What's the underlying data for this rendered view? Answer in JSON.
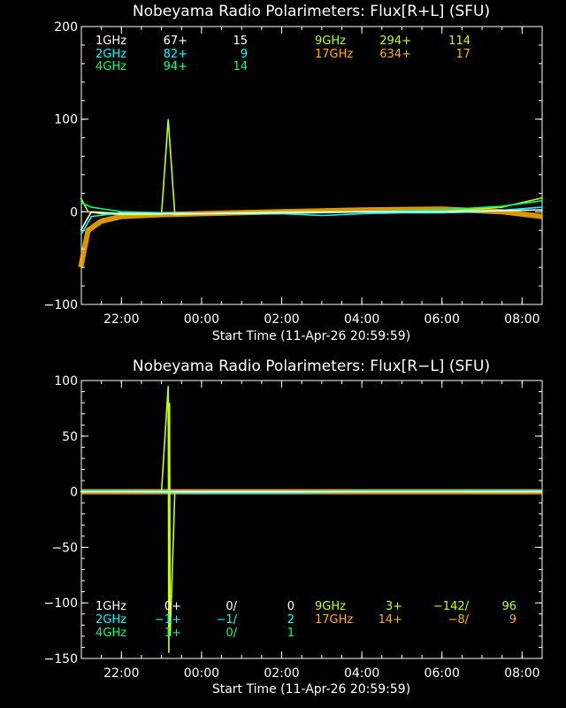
{
  "colors": {
    "background": "#000000",
    "axis": "#ffffff",
    "1GHz": "#ffffff",
    "2GHz": "#00ffff",
    "4GHz": "#00ff7f",
    "9GHz": "#c8ff00",
    "17GHz": "#ffb000"
  },
  "chart_data": [
    {
      "type": "line",
      "title": "Nobeyama Radio Polarimeters: Flux[R+L] (SFU)",
      "xlabel": "Start Time (11-Apr-26 20:59:59)",
      "ylabel": "",
      "x_ticks": [
        "22:00",
        "00:00",
        "02:00",
        "04:00",
        "06:00",
        "08:00"
      ],
      "x_start_time": "20:59:59",
      "x_end_time": "08:30",
      "y_ticks": [
        200,
        100,
        0,
        -100
      ],
      "ylim": [
        -100,
        200
      ],
      "legend_position": "top",
      "legend": [
        {
          "name": "1GHz",
          "a": "67+",
          "b": "15",
          "color_key": "1GHz"
        },
        {
          "name": "2GHz",
          "a": "82+",
          "b": "9",
          "color_key": "2GHz"
        },
        {
          "name": "4GHz",
          "a": "94+",
          "b": "14",
          "color_key": "4GHz"
        },
        {
          "name": "9GHz",
          "a": "294+",
          "b": "114",
          "color_key": "9GHz"
        },
        {
          "name": "17GHz",
          "a": "634+",
          "b": "17",
          "color_key": "17GHz"
        }
      ],
      "series": [
        {
          "name": "17GHz",
          "color_key": "17GHz",
          "x": [
            "20:59",
            "21:10",
            "21:30",
            "22:00",
            "23:00",
            "00:00",
            "02:00",
            "04:00",
            "06:00",
            "07:30",
            "08:30"
          ],
          "y": [
            -60,
            -20,
            -10,
            -5,
            -3,
            -2,
            0,
            2,
            3,
            0,
            -5
          ]
        },
        {
          "name": "9GHz",
          "color_key": "9GHz",
          "x": [
            "20:59",
            "21:10",
            "21:30",
            "22:00",
            "23:00",
            "23:10",
            "23:20",
            "00:00",
            "02:00",
            "04:00",
            "06:00",
            "07:30",
            "08:30"
          ],
          "y": [
            15,
            0,
            -2,
            -3,
            -3,
            100,
            -3,
            -2,
            0,
            0,
            0,
            5,
            15
          ]
        },
        {
          "name": "4GHz",
          "color_key": "4GHz",
          "x": [
            "20:59",
            "21:15",
            "22:00",
            "00:00",
            "02:00",
            "04:00",
            "06:00",
            "07:30",
            "08:30"
          ],
          "y": [
            10,
            5,
            0,
            -2,
            -1,
            0,
            2,
            6,
            12
          ]
        },
        {
          "name": "2GHz",
          "color_key": "2GHz",
          "x": [
            "20:59",
            "21:15",
            "22:00",
            "00:00",
            "02:00",
            "03:00",
            "04:00",
            "05:00",
            "06:00",
            "07:00",
            "08:30"
          ],
          "y": [
            -25,
            -5,
            -1,
            -2,
            -2,
            -4,
            -2,
            -1,
            -1,
            0,
            5
          ]
        },
        {
          "name": "1GHz",
          "color_key": "1GHz",
          "x": [
            "20:59",
            "21:15",
            "22:00",
            "00:00",
            "02:00",
            "04:00",
            "06:00",
            "08:30"
          ],
          "y": [
            -20,
            0,
            -2,
            -2,
            -1,
            0,
            0,
            2
          ]
        }
      ]
    },
    {
      "type": "line",
      "title": "Nobeyama Radio Polarimeters: Flux[R−L] (SFU)",
      "xlabel": "Start Time (11-Apr-26 20:59:59)",
      "ylabel": "",
      "x_ticks": [
        "22:00",
        "00:00",
        "02:00",
        "04:00",
        "06:00",
        "08:00"
      ],
      "x_start_time": "20:59:59",
      "x_end_time": "08:30",
      "y_ticks": [
        100,
        50,
        0,
        -50,
        -100,
        -150
      ],
      "ylim": [
        -150,
        100
      ],
      "legend_position": "bottom",
      "legend": [
        {
          "name": "1GHz",
          "a": "0+",
          "b": "0/",
          "c": "0",
          "color_key": "1GHz"
        },
        {
          "name": "2GHz",
          "a": "−1+",
          "b": "−1/",
          "c": "2",
          "color_key": "2GHz"
        },
        {
          "name": "4GHz",
          "a": "1+",
          "b": "0/",
          "c": "1",
          "color_key": "4GHz"
        },
        {
          "name": "9GHz",
          "a": "3+",
          "b": "−142/",
          "c": "96",
          "color_key": "9GHz"
        },
        {
          "name": "17GHz",
          "a": "14+",
          "b": "−8/",
          "c": "9",
          "color_key": "17GHz"
        }
      ],
      "series": [
        {
          "name": "17GHz",
          "color_key": "17GHz",
          "x": [
            "20:59",
            "22:00",
            "00:00",
            "02:00",
            "04:00",
            "06:00",
            "08:30"
          ],
          "y": [
            0,
            0,
            0,
            0,
            0,
            0,
            0
          ]
        },
        {
          "name": "9GHz",
          "color_key": "9GHz",
          "x": [
            "20:59",
            "22:00",
            "23:00",
            "23:10",
            "23:11",
            "23:12",
            "23:13",
            "23:20",
            "00:00",
            "02:00",
            "04:00",
            "06:00",
            "08:30"
          ],
          "y": [
            0,
            0,
            0,
            95,
            -145,
            80,
            -130,
            0,
            0,
            0,
            0,
            0,
            0
          ]
        },
        {
          "name": "4GHz",
          "color_key": "4GHz",
          "x": [
            "20:59",
            "22:00",
            "00:00",
            "02:00",
            "04:00",
            "06:00",
            "08:30"
          ],
          "y": [
            1,
            1,
            0,
            0,
            1,
            1,
            1
          ]
        },
        {
          "name": "2GHz",
          "color_key": "2GHz",
          "x": [
            "20:59",
            "22:00",
            "00:00",
            "02:00",
            "04:00",
            "06:00",
            "08:30"
          ],
          "y": [
            0,
            0,
            -1,
            -1,
            0,
            0,
            1
          ]
        },
        {
          "name": "1GHz",
          "color_key": "1GHz",
          "x": [
            "20:59",
            "22:00",
            "00:00",
            "02:00",
            "04:00",
            "06:00",
            "08:30"
          ],
          "y": [
            0,
            0,
            0,
            0,
            0,
            0,
            0
          ]
        }
      ]
    }
  ]
}
